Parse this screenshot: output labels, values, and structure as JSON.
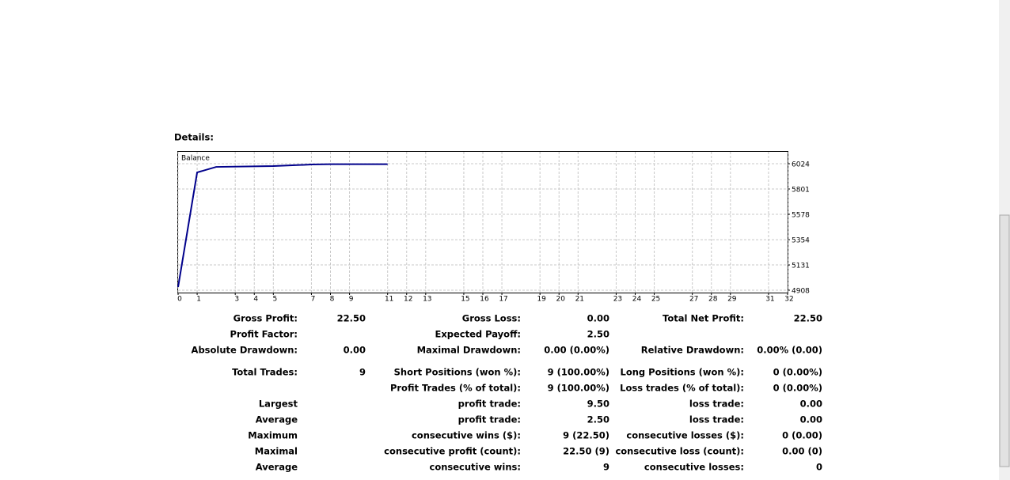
{
  "heading": "Details:",
  "chart_data": {
    "type": "line",
    "x": [
      0,
      1,
      2,
      5,
      6,
      7,
      8,
      11
    ],
    "series": [
      {
        "name": "Balance",
        "color": "#00008b",
        "values": [
          4936,
          5947,
          5996,
          6003,
          6010,
          6017,
          6020,
          6020
        ]
      }
    ],
    "xlim": [
      0,
      32
    ],
    "ylim": [
      4887,
      6129
    ],
    "xticks": [
      0,
      1,
      3,
      4,
      5,
      7,
      8,
      9,
      11,
      12,
      13,
      15,
      16,
      17,
      19,
      20,
      21,
      23,
      24,
      25,
      27,
      28,
      29,
      31,
      32
    ],
    "yticks": [
      4908,
      5131,
      5354,
      5578,
      5801,
      6024
    ],
    "grid": true
  },
  "table": {
    "rows": [
      [
        "Gross Profit:",
        "22.50",
        "Gross Loss:",
        "0.00",
        "Total Net Profit:",
        "22.50"
      ],
      [
        "Profit Factor:",
        null,
        "Expected Payoff:",
        "2.50",
        null,
        null
      ],
      [
        "Absolute Drawdown:",
        "0.00",
        "Maximal Drawdown:",
        "0.00 (0.00%)",
        "Relative Drawdown:",
        "0.00% (0.00)"
      ],
      [
        "Total Trades:",
        "9",
        "Short Positions (won %):",
        "9 (100.00%)",
        "Long Positions (won %):",
        "0 (0.00%)"
      ],
      [
        null,
        null,
        "Profit Trades (% of total):",
        "9 (100.00%)",
        "Loss trades (% of total):",
        "0 (0.00%)"
      ],
      [
        "Largest",
        null,
        "profit trade:",
        "9.50",
        "loss trade:",
        "0.00"
      ],
      [
        "Average",
        null,
        "profit trade:",
        "2.50",
        "loss trade:",
        "0.00"
      ],
      [
        "Maximum",
        null,
        "consecutive wins ($):",
        "9 (22.50)",
        "consecutive losses ($):",
        "0 (0.00)"
      ],
      [
        "Maximal",
        null,
        "consecutive profit (count):",
        "22.50 (9)",
        "consecutive loss (count):",
        "0.00 (0)"
      ],
      [
        "Average",
        null,
        "consecutive wins:",
        "9",
        "consecutive losses:",
        "0"
      ]
    ]
  }
}
